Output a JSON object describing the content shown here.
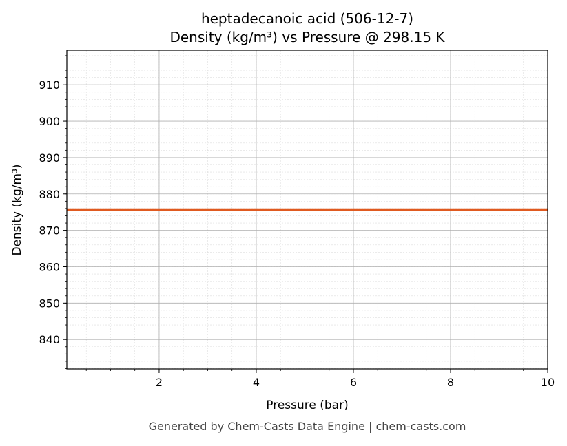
{
  "chart_data": {
    "type": "line",
    "title": "heptadecanoic acid (506-12-7)",
    "subtitle": "Density (kg/m³) vs Pressure @ 298.15 K",
    "xlabel": "Pressure (bar)",
    "ylabel": "Density (kg/m³)",
    "xlim": [
      0.1,
      10
    ],
    "ylim": [
      831.9,
      919.5
    ],
    "xticks": [
      2,
      4,
      6,
      8,
      10
    ],
    "yticks": [
      840,
      850,
      860,
      870,
      880,
      890,
      900,
      910
    ],
    "grid": true,
    "series": [
      {
        "name": "Density",
        "color": "#e05a20",
        "x": [
          0.1,
          10
        ],
        "y": [
          875.7,
          875.7
        ]
      }
    ]
  },
  "footer": "Generated by Chem-Casts Data Engine | chem-casts.com"
}
